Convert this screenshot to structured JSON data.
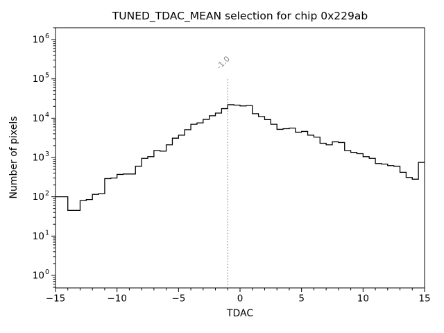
{
  "chart_data": {
    "type": "bar",
    "histtype": "step",
    "title": "TUNED_TDAC_MEAN selection for chip 0x229ab",
    "xlabel": "TDAC",
    "ylabel": "Number of pixels",
    "yscale": "log",
    "xlim": [
      -15,
      15
    ],
    "ylim": [
      0.48,
      2000000
    ],
    "xticks": [
      -15,
      -10,
      -5,
      0,
      5,
      10,
      15
    ],
    "ytick_exponents": [
      0,
      1,
      2,
      3,
      4,
      5,
      6
    ],
    "bin_start": -15,
    "bin_width": 0.5,
    "counts": [
      100,
      100,
      45,
      45,
      80,
      85,
      115,
      120,
      290,
      300,
      370,
      380,
      380,
      600,
      950,
      1050,
      1500,
      1450,
      2100,
      3100,
      3700,
      5100,
      7000,
      7600,
      9300,
      11500,
      13500,
      17500,
      22000,
      21500,
      20500,
      21000,
      13000,
      11000,
      9200,
      7000,
      5200,
      5400,
      5600,
      4400,
      4600,
      3700,
      3300,
      2300,
      2100,
      2500,
      2400,
      1500,
      1350,
      1250,
      1050,
      950,
      700,
      680,
      620,
      600,
      420,
      310,
      280,
      750
    ],
    "line_color": "#000000",
    "vline": {
      "x": -1.0,
      "label": "-1.0",
      "color": "#888888",
      "style": "dotted",
      "ymax": 100000
    },
    "grid": false,
    "legend": null
  }
}
